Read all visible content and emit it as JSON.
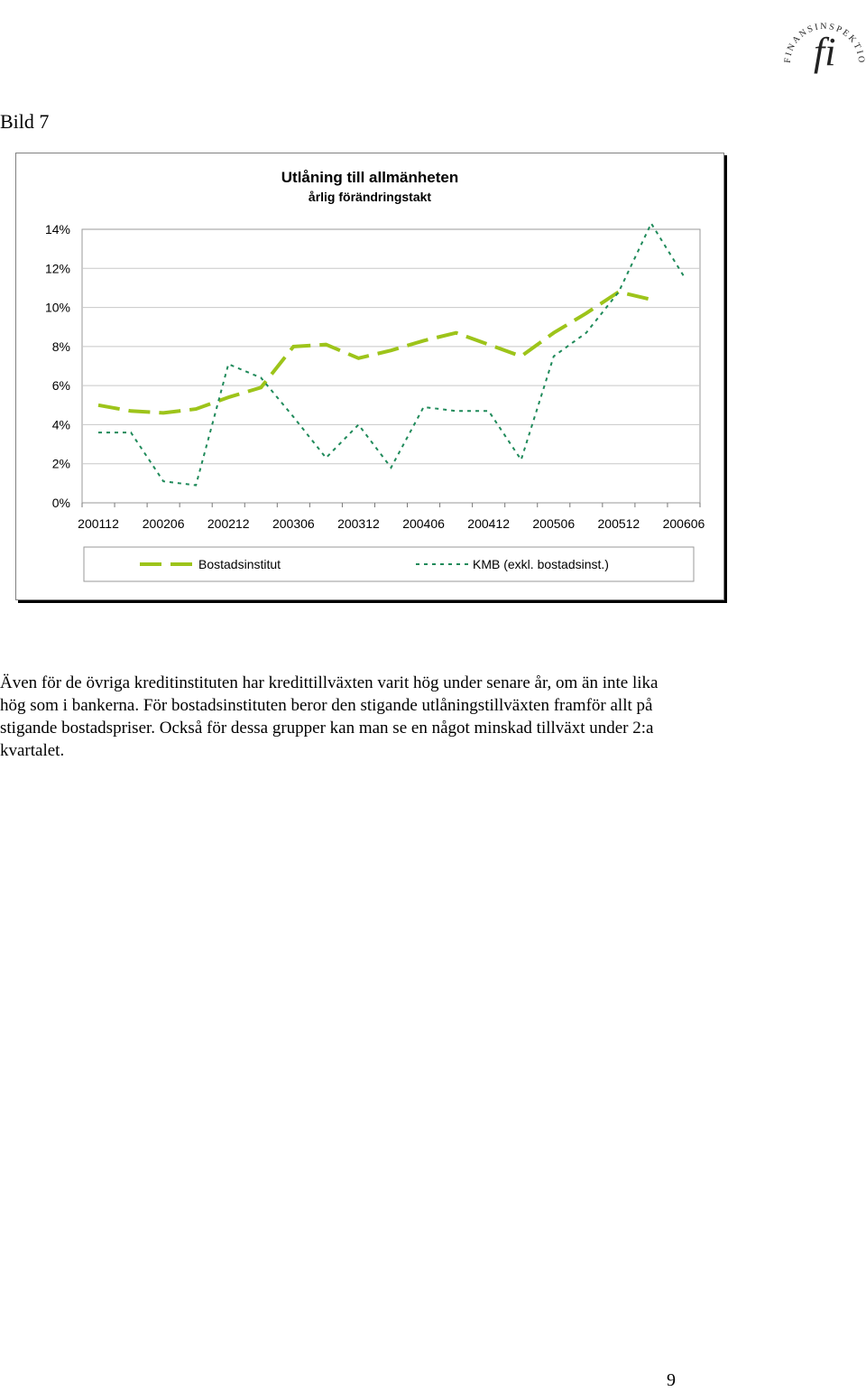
{
  "header": {
    "logo_text": "FINANSINSPEKTIONEN",
    "logo_mark": "fi",
    "figure_label": "Bild 7"
  },
  "chart_data": {
    "type": "line",
    "title": "Utlåning till allmänheten",
    "subtitle": "årlig förändringstakt",
    "xlabel": "",
    "ylabel": "",
    "x": [
      "200112",
      "200203",
      "200206",
      "200209",
      "200212",
      "200303",
      "200306",
      "200309",
      "200312",
      "200403",
      "200406",
      "200409",
      "200412",
      "200503",
      "200506",
      "200509",
      "200512",
      "200603",
      "200606"
    ],
    "x_tick_labels": [
      "200112",
      "200206",
      "200212",
      "200306",
      "200312",
      "200406",
      "200412",
      "200506",
      "200512",
      "200606"
    ],
    "y_ticks": [
      "0%",
      "2%",
      "4%",
      "6%",
      "8%",
      "10%",
      "12%",
      "14%"
    ],
    "ylim": [
      0,
      14
    ],
    "grid": true,
    "legend_position": "bottom",
    "series": [
      {
        "name": "Bostadsinstitut",
        "color": "#9dc41a",
        "style": "dashed-thick",
        "values": [
          5.0,
          4.7,
          4.6,
          4.8,
          5.4,
          5.9,
          8.0,
          8.1,
          7.4,
          7.8,
          8.3,
          8.7,
          8.1,
          7.5,
          8.7,
          9.7,
          10.8,
          10.4,
          null
        ]
      },
      {
        "name": "KMB (exkl. bostadsinst.)",
        "color": "#1f8a5a",
        "style": "dotted",
        "values": [
          3.6,
          3.6,
          1.1,
          0.9,
          7.1,
          6.4,
          4.4,
          2.3,
          4.0,
          1.8,
          4.9,
          4.7,
          4.7,
          2.2,
          7.5,
          8.7,
          10.8,
          14.3,
          11.6
        ]
      }
    ]
  },
  "body": {
    "paragraph": "Även för de övriga kreditinstituten har kredittillväxten varit hög under senare år, om än inte lika hög som i bankerna. För bostadsinstituten beror den stigande utlåningstillväxten framför allt på stigande bostadspriser. Också för dessa grupper kan man se en något minskad tillväxt under 2:a kvartalet."
  },
  "footer": {
    "page_number": "9"
  }
}
